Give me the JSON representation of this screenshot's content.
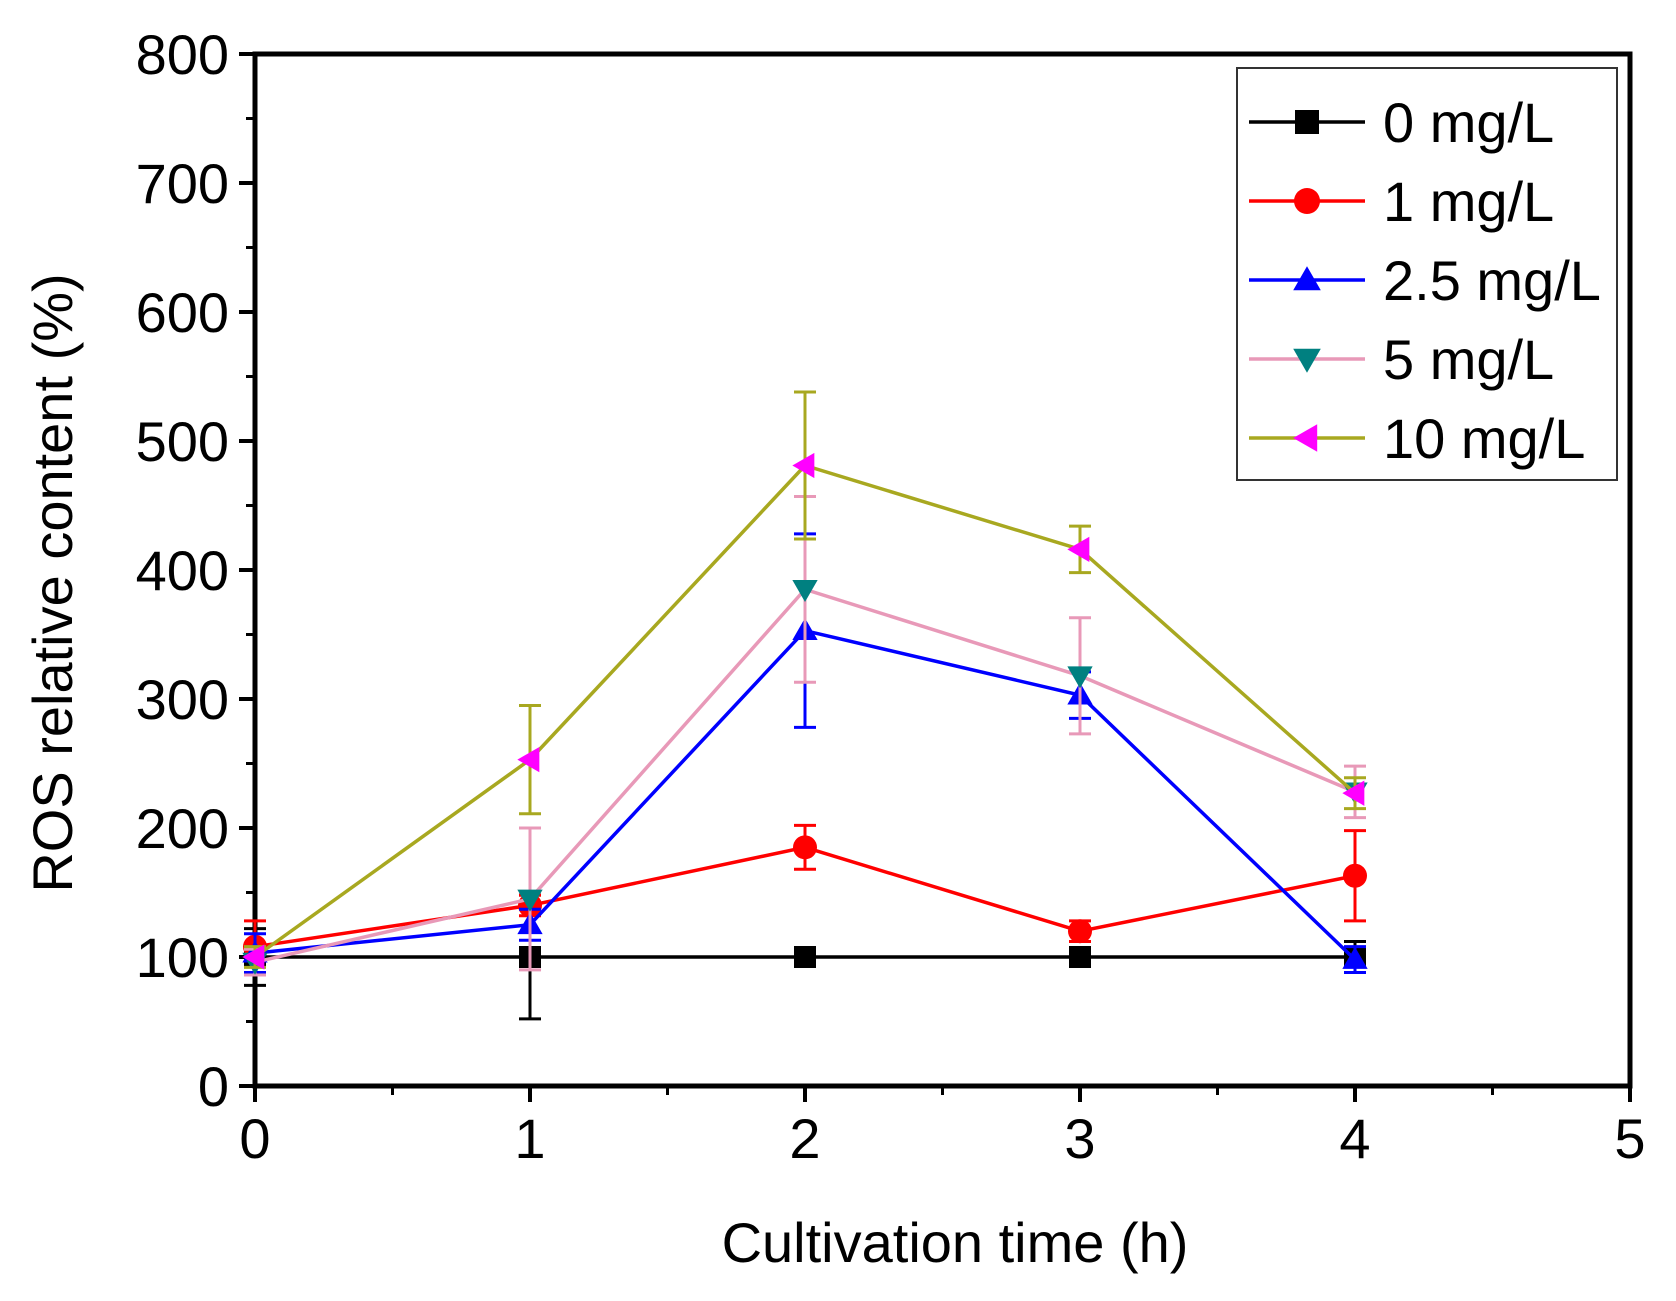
{
  "chart_data": {
    "type": "line",
    "title": "",
    "xlabel": "Cultivation time (h)",
    "ylabel": "ROS relative content (%)",
    "xlim": [
      0,
      5
    ],
    "ylim": [
      0,
      800
    ],
    "xticks": [
      0,
      1,
      2,
      3,
      4,
      5
    ],
    "yticks": [
      0,
      100,
      200,
      300,
      400,
      500,
      600,
      700,
      800
    ],
    "grid": false,
    "legend_position": "top-right",
    "series": [
      {
        "name": "0 mg/L",
        "color": "#000000",
        "marker": "square",
        "x": [
          0,
          1,
          2,
          3,
          4
        ],
        "y": [
          100,
          100,
          100,
          100,
          100
        ],
        "err": [
          22,
          48,
          5,
          5,
          12
        ]
      },
      {
        "name": "1 mg/L",
        "color": "#ff0000",
        "marker": "circle",
        "x": [
          0,
          1,
          2,
          3,
          4
        ],
        "y": [
          108,
          140,
          185,
          120,
          163
        ],
        "err": [
          20,
          8,
          17,
          8,
          35
        ]
      },
      {
        "name": "2.5 mg/L",
        "color": "#0000ff",
        "marker": "triangle-up",
        "x": [
          0,
          1,
          2,
          3,
          4
        ],
        "y": [
          103,
          125,
          353,
          303,
          98
        ],
        "err": [
          15,
          12,
          75,
          18,
          10
        ]
      },
      {
        "name": "5 mg/L",
        "color": "#e899b8",
        "marker": "triangle-down",
        "x": [
          0,
          1,
          2,
          3,
          4
        ],
        "y": [
          96,
          145,
          385,
          318,
          228
        ],
        "err": [
          10,
          55,
          72,
          45,
          20
        ]
      },
      {
        "name": "10 mg/L",
        "color": "#a8a820",
        "marker": "triangle-left",
        "x": [
          0,
          1,
          2,
          3,
          4
        ],
        "y": [
          100,
          253,
          481,
          416,
          227
        ],
        "err": [
          8,
          42,
          57,
          18,
          12
        ]
      }
    ],
    "marker_colors": {
      "square": "#000000",
      "circle": "#ff0000",
      "triangle-up": "#0000ff",
      "triangle-down": "#008080",
      "triangle-left": "#ff00ff"
    },
    "errorbar_colors": {
      "0 mg/L": "#000000",
      "1 mg/L": "#ff0000",
      "2.5 mg/L": "#0000ff",
      "5 mg/L": "#e899b8",
      "10 mg/L": "#a8a820"
    }
  }
}
